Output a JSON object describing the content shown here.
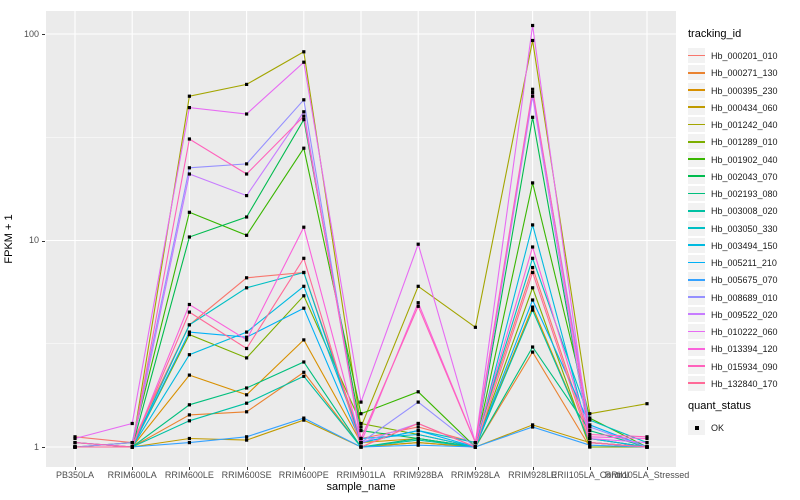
{
  "chart_data": {
    "type": "line",
    "xlabel": "sample_name",
    "ylabel": "FPKM + 1",
    "y_scale": "log10",
    "y_ticks": [
      1,
      10,
      100
    ],
    "ylim": [
      0.8,
      130
    ],
    "grid": "on",
    "panel_background": "#EBEBEB",
    "gridline_color": "#FFFFFF",
    "point_color": "#000000",
    "legend_title": "tracking_id",
    "legend_position": "right",
    "quant_status": {
      "title": "quant_status",
      "items": [
        "OK"
      ]
    },
    "x_categories": [
      "PB350LA",
      "RRIM600LA",
      "RRIM600LE",
      "RRIM600SE",
      "RRIM600PE",
      "RRIM901LA",
      "RRIM928BA",
      "RRIM928LA",
      "RRIM928LE",
      "RRII105LA_Control",
      "RRII105LA_Stressed"
    ],
    "series": [
      {
        "name": "Hb_000201_010",
        "color": "#F8766D",
        "values": [
          1.12,
          1.05,
          3.9,
          6.6,
          7.0,
          1.1,
          1.25,
          1.05,
          7.4,
          1.1,
          1.0
        ]
      },
      {
        "name": "Hb_000271_130",
        "color": "#EA8331",
        "values": [
          1.0,
          1.0,
          1.43,
          1.48,
          2.3,
          1.0,
          1.05,
          1.0,
          2.88,
          1.0,
          1.0
        ]
      },
      {
        "name": "Hb_000395_230",
        "color": "#D89000",
        "values": [
          1.0,
          1.0,
          2.23,
          1.79,
          3.3,
          1.05,
          1.1,
          1.0,
          4.76,
          1.05,
          1.0
        ]
      },
      {
        "name": "Hb_000434_060",
        "color": "#C09B00",
        "values": [
          1.0,
          1.0,
          1.1,
          1.08,
          1.35,
          1.0,
          1.05,
          1.0,
          1.28,
          1.05,
          1.0
        ]
      },
      {
        "name": "Hb_001242_040",
        "color": "#A3A500",
        "values": [
          1.05,
          1.0,
          50,
          57,
          82,
          1.25,
          6.0,
          3.8,
          93,
          1.45,
          1.62
        ]
      },
      {
        "name": "Hb_001289_010",
        "color": "#7CAE00",
        "values": [
          1.0,
          1.0,
          3.5,
          2.7,
          5.4,
          1.3,
          1.15,
          1.0,
          5.9,
          1.0,
          1.0
        ]
      },
      {
        "name": "Hb_001902_040",
        "color": "#39B600",
        "values": [
          1.0,
          1.05,
          13.7,
          10.6,
          28,
          1.45,
          1.85,
          1.0,
          19,
          1.38,
          1.0
        ]
      },
      {
        "name": "Hb_002043_070",
        "color": "#00BB4E",
        "values": [
          1.0,
          1.0,
          10.4,
          13.0,
          38.5,
          1.2,
          1.1,
          1.0,
          39.5,
          1.1,
          1.0
        ]
      },
      {
        "name": "Hb_002193_080",
        "color": "#00BF7D",
        "values": [
          1.0,
          1.0,
          1.6,
          1.93,
          2.58,
          1.0,
          1.1,
          1.0,
          3.05,
          1.2,
          1.0
        ]
      },
      {
        "name": "Hb_003008_020",
        "color": "#00C1A3",
        "values": [
          1.0,
          1.0,
          1.34,
          1.63,
          2.2,
          1.0,
          1.08,
          1.0,
          4.6,
          1.05,
          1.0
        ]
      },
      {
        "name": "Hb_003050_330",
        "color": "#00BFC4",
        "values": [
          1.05,
          1.0,
          3.9,
          5.9,
          7.0,
          1.05,
          1.2,
          1.05,
          8.2,
          1.35,
          1.05
        ]
      },
      {
        "name": "Hb_003494_150",
        "color": "#00BAE0",
        "values": [
          1.0,
          1.0,
          2.8,
          3.6,
          6.0,
          1.1,
          1.15,
          1.0,
          11.9,
          1.1,
          1.0
        ]
      },
      {
        "name": "Hb_005211_210",
        "color": "#00B0F6",
        "values": [
          1.0,
          1.0,
          3.6,
          3.4,
          4.7,
          1.05,
          1.2,
          1.0,
          5.15,
          1.28,
          1.0
        ]
      },
      {
        "name": "Hb_005675_070",
        "color": "#35A2FF",
        "values": [
          1.0,
          1.0,
          1.05,
          1.12,
          1.38,
          1.0,
          1.02,
          1.0,
          1.25,
          1.02,
          1.0
        ]
      },
      {
        "name": "Hb_008689_010",
        "color": "#9590FF",
        "values": [
          1.0,
          1.05,
          22.5,
          23.5,
          48,
          1.05,
          1.65,
          1.0,
          52,
          1.25,
          1.0
        ]
      },
      {
        "name": "Hb_009522_020",
        "color": "#C77CFF",
        "values": [
          1.0,
          1.0,
          21,
          16.5,
          42,
          1.05,
          1.3,
          1.0,
          50,
          1.05,
          1.0
        ]
      },
      {
        "name": "Hb_010222_060",
        "color": "#E76BF3",
        "values": [
          1.1,
          1.3,
          44,
          41,
          73,
          1.65,
          9.6,
          1.05,
          110,
          1.1,
          1.05
        ]
      },
      {
        "name": "Hb_013394_120",
        "color": "#FA62DB",
        "values": [
          1.0,
          1.0,
          4.9,
          3.3,
          11.6,
          1.05,
          5.0,
          1.05,
          9.3,
          1.12,
          1.1
        ]
      },
      {
        "name": "Hb_015934_090",
        "color": "#FF62BC",
        "values": [
          1.05,
          1.0,
          31,
          21,
          40,
          1.1,
          4.8,
          1.05,
          54,
          1.15,
          1.12
        ]
      },
      {
        "name": "Hb_132840_170",
        "color": "#FF6A98",
        "values": [
          1.0,
          1.0,
          4.5,
          3.0,
          8.2,
          1.0,
          1.3,
          1.0,
          7.0,
          1.05,
          1.0
        ]
      }
    ]
  }
}
